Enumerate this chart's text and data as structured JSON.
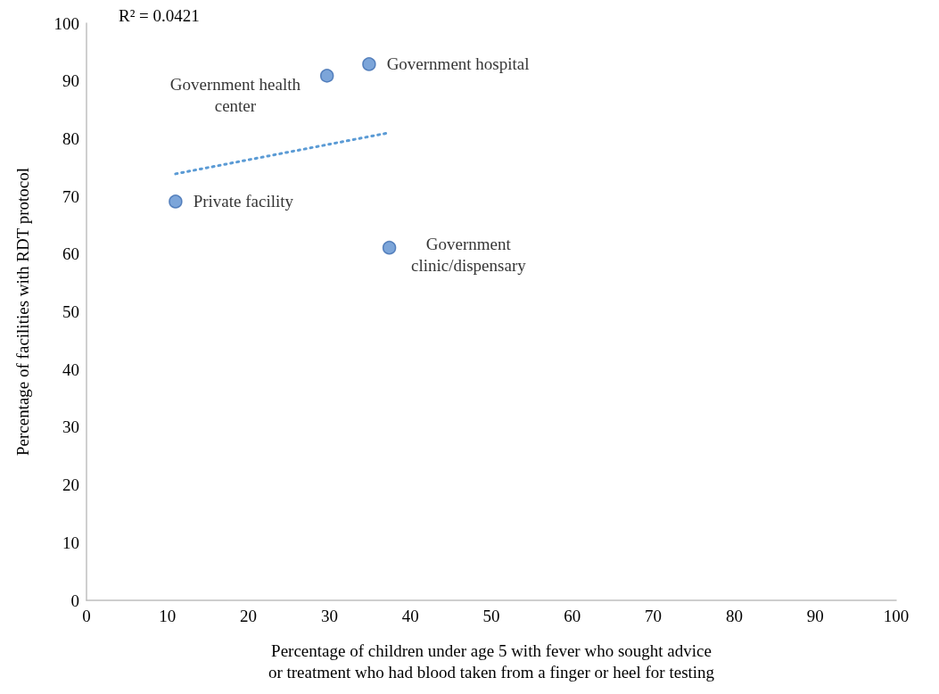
{
  "chart_data": {
    "type": "scatter",
    "xlabel": "Percentage of children under age 5 with fever who sought advice or treatment who had blood taken from a finger or heel for testing",
    "ylabel": "Percentage of facilities with RDT protocol",
    "series": [
      {
        "color": "#5b8fd0",
        "x": [
          29.7,
          34.9,
          11.0,
          37.4
        ],
        "values": [
          90.9,
          92.9,
          69.1,
          61.1
        ],
        "marker": "circle"
      },
      {
        "type": "line",
        "color": "#5b9bd5",
        "x": [
          11.0,
          37.3
        ],
        "values": [
          73.9,
          81.0
        ],
        "line_style": "dotted",
        "marker": "none"
      }
    ],
    "annotations": [
      "R² = 0.0421",
      {
        "text": "Government health\ncenter",
        "x": 29.7,
        "y": 90.9
      },
      {
        "text": "Government hospital",
        "x": 34.9,
        "y": 92.9
      },
      {
        "text": "Private facility",
        "x": 11.0,
        "y": 69.1
      },
      {
        "text": "Government\nclinic/dispensary",
        "x": 37.4,
        "y": 61.1
      }
    ],
    "xlim": [
      0,
      100
    ],
    "xticks": [
      0,
      10,
      20,
      30,
      40,
      50,
      60,
      70,
      80,
      90,
      100
    ],
    "ylim": [
      0,
      100
    ],
    "yticks": [
      0,
      10,
      20,
      30,
      40,
      50,
      60,
      70,
      80,
      90,
      100
    ],
    "grid": false
  }
}
